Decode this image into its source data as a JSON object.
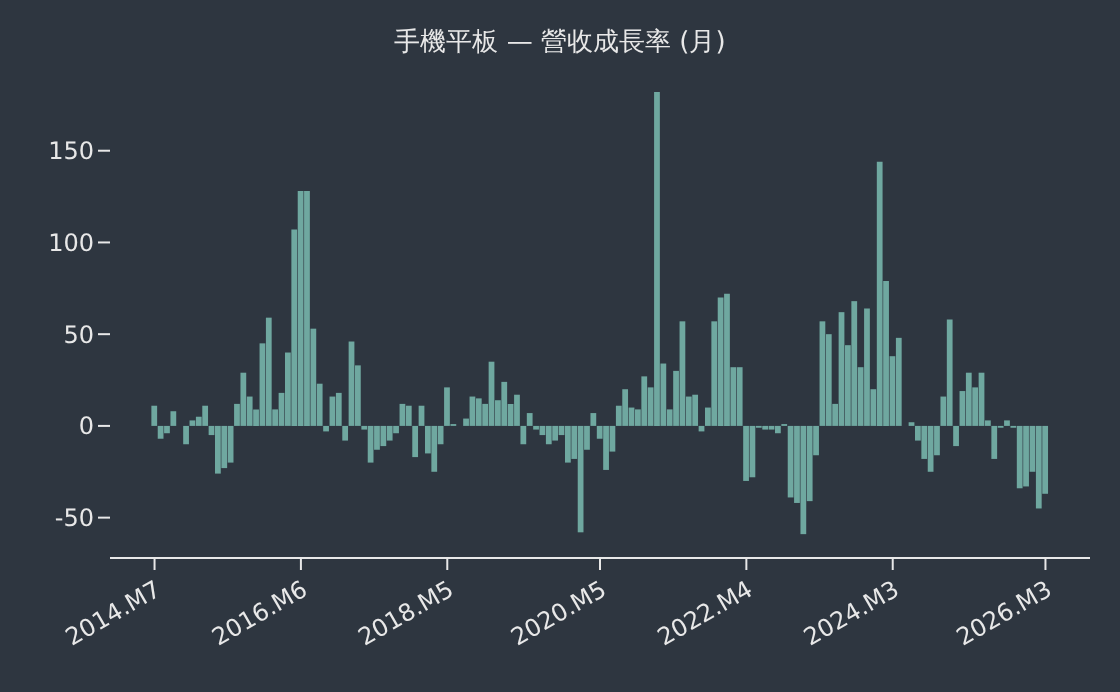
{
  "chart_data": {
    "type": "bar",
    "title": "手機平板 — 營收成長率 (月)",
    "x": [
      "2014-07",
      "2014-08",
      "2014-09",
      "2014-10",
      "2014-11",
      "2014-12",
      "2015-01",
      "2015-02",
      "2015-03",
      "2015-04",
      "2015-05",
      "2015-06",
      "2015-07",
      "2015-08",
      "2015-09",
      "2015-10",
      "2015-11",
      "2015-12",
      "2016-01",
      "2016-02",
      "2016-03",
      "2016-04",
      "2016-05",
      "2016-06",
      "2016-07",
      "2016-08",
      "2016-09",
      "2016-10",
      "2016-11",
      "2016-12",
      "2017-01",
      "2017-02",
      "2017-03",
      "2017-04",
      "2017-05",
      "2017-06",
      "2017-07",
      "2017-08",
      "2017-09",
      "2017-10",
      "2017-11",
      "2017-12",
      "2018-01",
      "2018-02",
      "2018-03",
      "2018-04",
      "2018-05",
      "2018-06",
      "2018-07",
      "2018-08",
      "2018-09",
      "2018-10",
      "2018-11",
      "2018-12",
      "2019-01",
      "2019-02",
      "2019-03",
      "2019-04",
      "2019-05",
      "2019-06",
      "2019-07",
      "2019-08",
      "2019-09",
      "2019-10",
      "2019-11",
      "2019-12",
      "2020-01",
      "2020-02",
      "2020-03",
      "2020-04",
      "2020-05",
      "2020-06",
      "2020-07",
      "2020-08",
      "2020-09",
      "2020-10",
      "2020-11",
      "2020-12",
      "2021-01",
      "2021-02",
      "2021-03",
      "2021-04",
      "2021-05",
      "2021-06",
      "2021-07",
      "2021-08",
      "2021-09",
      "2021-10",
      "2021-11",
      "2021-12",
      "2022-01",
      "2022-02",
      "2022-03",
      "2022-04",
      "2022-05",
      "2022-06",
      "2022-07",
      "2022-08",
      "2022-09",
      "2022-10",
      "2022-11",
      "2022-12",
      "2023-01",
      "2023-02",
      "2023-03",
      "2023-04",
      "2023-05",
      "2023-06",
      "2023-07",
      "2023-08",
      "2023-09",
      "2023-10",
      "2023-11",
      "2023-12",
      "2024-01",
      "2024-02",
      "2024-03",
      "2024-04",
      "2024-05",
      "2024-06",
      "2024-07",
      "2024-08",
      "2024-09",
      "2024-10",
      "2024-11",
      "2024-12",
      "2025-01",
      "2025-02",
      "2025-03",
      "2025-04",
      "2025-05",
      "2025-06",
      "2025-07",
      "2025-08",
      "2025-09",
      "2025-10",
      "2025-11",
      "2025-12",
      "2026-01",
      "2026-02",
      "2026-03"
    ],
    "values": [
      11,
      -7,
      -4,
      8,
      0,
      -10,
      3,
      5,
      11,
      -5,
      -26,
      -23,
      -20,
      12,
      29,
      16,
      9,
      45,
      59,
      9,
      18,
      40,
      107,
      128,
      128,
      53,
      23,
      -3,
      16,
      18,
      -8,
      46,
      33,
      -2,
      -20,
      -13,
      -11,
      -8,
      -4,
      12,
      11,
      -17,
      11,
      -15,
      -25,
      -10,
      21,
      1,
      0,
      4,
      16,
      15,
      12,
      35,
      14,
      24,
      12,
      17,
      -10,
      7,
      -2,
      -5,
      -10,
      -8,
      -5,
      -20,
      -18,
      -58,
      -13,
      7,
      -7,
      -24,
      -14,
      11,
      20,
      10,
      9,
      27,
      21,
      182,
      34,
      9,
      30,
      57,
      16,
      17,
      -3,
      10,
      57,
      70,
      72,
      32,
      32,
      -30,
      -28,
      -1,
      -2,
      -2,
      -4,
      1,
      -39,
      -42,
      -59,
      -41,
      -16,
      57,
      50,
      12,
      62,
      44,
      68,
      32,
      64,
      20,
      144,
      79,
      38,
      48,
      0,
      2,
      -8,
      -18,
      -25,
      -16,
      16,
      58,
      -11,
      19,
      29,
      21,
      29,
      3,
      -18,
      -1,
      3,
      -1,
      -34,
      -33,
      -25,
      -45,
      -37
    ],
    "color": "#6fa8a0",
    "xlim": [
      "2013-12",
      "2026-10"
    ],
    "xticks": [
      {
        "value": "2014-07",
        "label": "2014.M7"
      },
      {
        "value": "2016-06",
        "label": "2016.M6"
      },
      {
        "value": "2018-05",
        "label": "2018.M5"
      },
      {
        "value": "2020-05",
        "label": "2020.M5"
      },
      {
        "value": "2022-04",
        "label": "2022.M4"
      },
      {
        "value": "2024-03",
        "label": "2024.M3"
      },
      {
        "value": "2026-03",
        "label": "2026.M3"
      }
    ],
    "ylim": [
      -72,
      182
    ],
    "yticks": [
      -50,
      0,
      50,
      100,
      150
    ]
  }
}
